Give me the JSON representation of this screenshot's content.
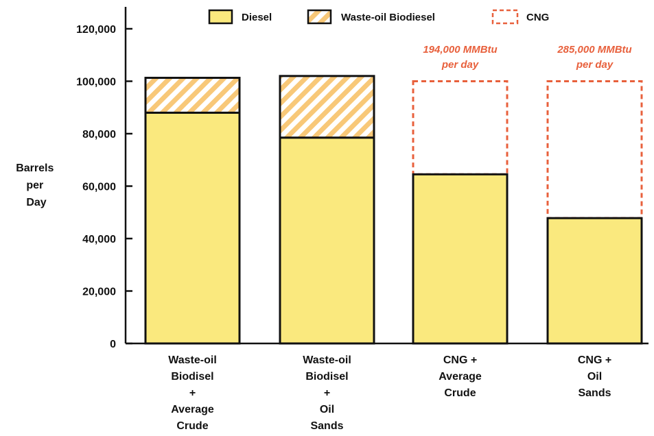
{
  "chart_data": {
    "type": "bar",
    "stacked": true,
    "title": "",
    "ylabel": "Barrels per Day",
    "ylabel_lines": [
      "Barrels",
      "per",
      "Day"
    ],
    "ylim": [
      0,
      125000
    ],
    "yticks": [
      0,
      20000,
      40000,
      60000,
      80000,
      100000,
      120000
    ],
    "ytick_labels": [
      "0",
      "20,000",
      "40,000",
      "60,000",
      "80,000",
      "100,000",
      "120,000"
    ],
    "grid": false,
    "legend_position": "top",
    "categories": [
      "Waste-oil Biodisel + Average Crude",
      "Waste-oil Biodisel + Oil Sands",
      "CNG + Average Crude",
      "CNG + Oil Sands"
    ],
    "category_label_lines": [
      [
        "Waste-oil",
        "Biodisel",
        "+",
        "Average",
        "Crude"
      ],
      [
        "Waste-oil",
        "Biodisel",
        "+",
        "Oil",
        "Sands"
      ],
      [
        "CNG +",
        "Average",
        "Crude"
      ],
      [
        "CNG +",
        "Oil",
        "Sands"
      ]
    ],
    "series": [
      {
        "name": "Diesel",
        "style": "solid",
        "values": [
          88000,
          78500,
          64500,
          47800
        ]
      },
      {
        "name": "Waste-oil Biodiesel",
        "style": "hatched",
        "values": [
          13300,
          23500,
          0,
          0
        ]
      },
      {
        "name": "CNG",
        "style": "dashed-outline",
        "values": [
          0,
          0,
          35500,
          52200
        ]
      }
    ],
    "annotations": [
      {
        "category_index": 2,
        "lines": [
          "194,000 MMBtu",
          "per day"
        ]
      },
      {
        "category_index": 3,
        "lines": [
          "285,000 MMBtu",
          "per day"
        ]
      }
    ],
    "colors": {
      "diesel_fill": "#FAE97E",
      "hatch_stripe": "#F8C878",
      "cng_outline": "#E8603C",
      "annotation": "#E8603C",
      "axis": "#111111"
    }
  }
}
